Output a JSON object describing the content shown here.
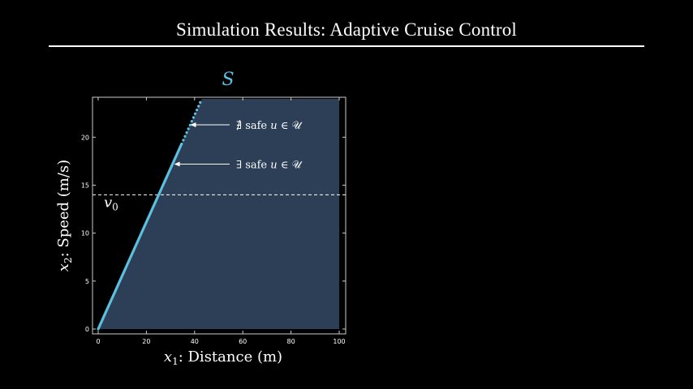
{
  "slide": {
    "title": "Simulation Results: Adaptive Cruise Control"
  },
  "colors": {
    "background": "#000000",
    "plot_area": "#000000",
    "safe_region_fill": "#2d3e57",
    "boundary": "#5bc0de",
    "text": "#ffffff",
    "axis": "#cccccc"
  },
  "chart_data": {
    "type": "area",
    "region_label": "S",
    "xlabel_var": "x",
    "xlabel_sub": "1",
    "xlabel_text": ": Distance (m)",
    "ylabel_var": "x",
    "ylabel_sub": "2",
    "ylabel_text": ": Speed (m/s)",
    "xlim": [
      0,
      100
    ],
    "ylim": [
      0,
      24
    ],
    "x_ticks": [
      0,
      20,
      40,
      60,
      80,
      100
    ],
    "y_ticks": [
      0,
      5,
      10,
      15,
      20
    ],
    "boundary_solid": {
      "x": [
        0,
        34.6
      ],
      "y": [
        0,
        19.3
      ]
    },
    "boundary_dotted": {
      "x": [
        34.6,
        43
      ],
      "y": [
        19.3,
        24
      ]
    },
    "v0": {
      "label_var": "v",
      "label_sub": "0",
      "y": 14
    },
    "annotations": [
      {
        "id": "exists",
        "prefix": "∃",
        "text": " safe ",
        "var": "u",
        "rel": " ∈ ",
        "set": "𝒰",
        "point_x": 31.5,
        "point_y": 17.2
      },
      {
        "id": "not-exists",
        "prefix": "∄",
        "text": " safe ",
        "var": "u",
        "rel": " ∈ ",
        "set": "𝒰",
        "point_x": 38.2,
        "point_y": 21.3
      }
    ]
  }
}
